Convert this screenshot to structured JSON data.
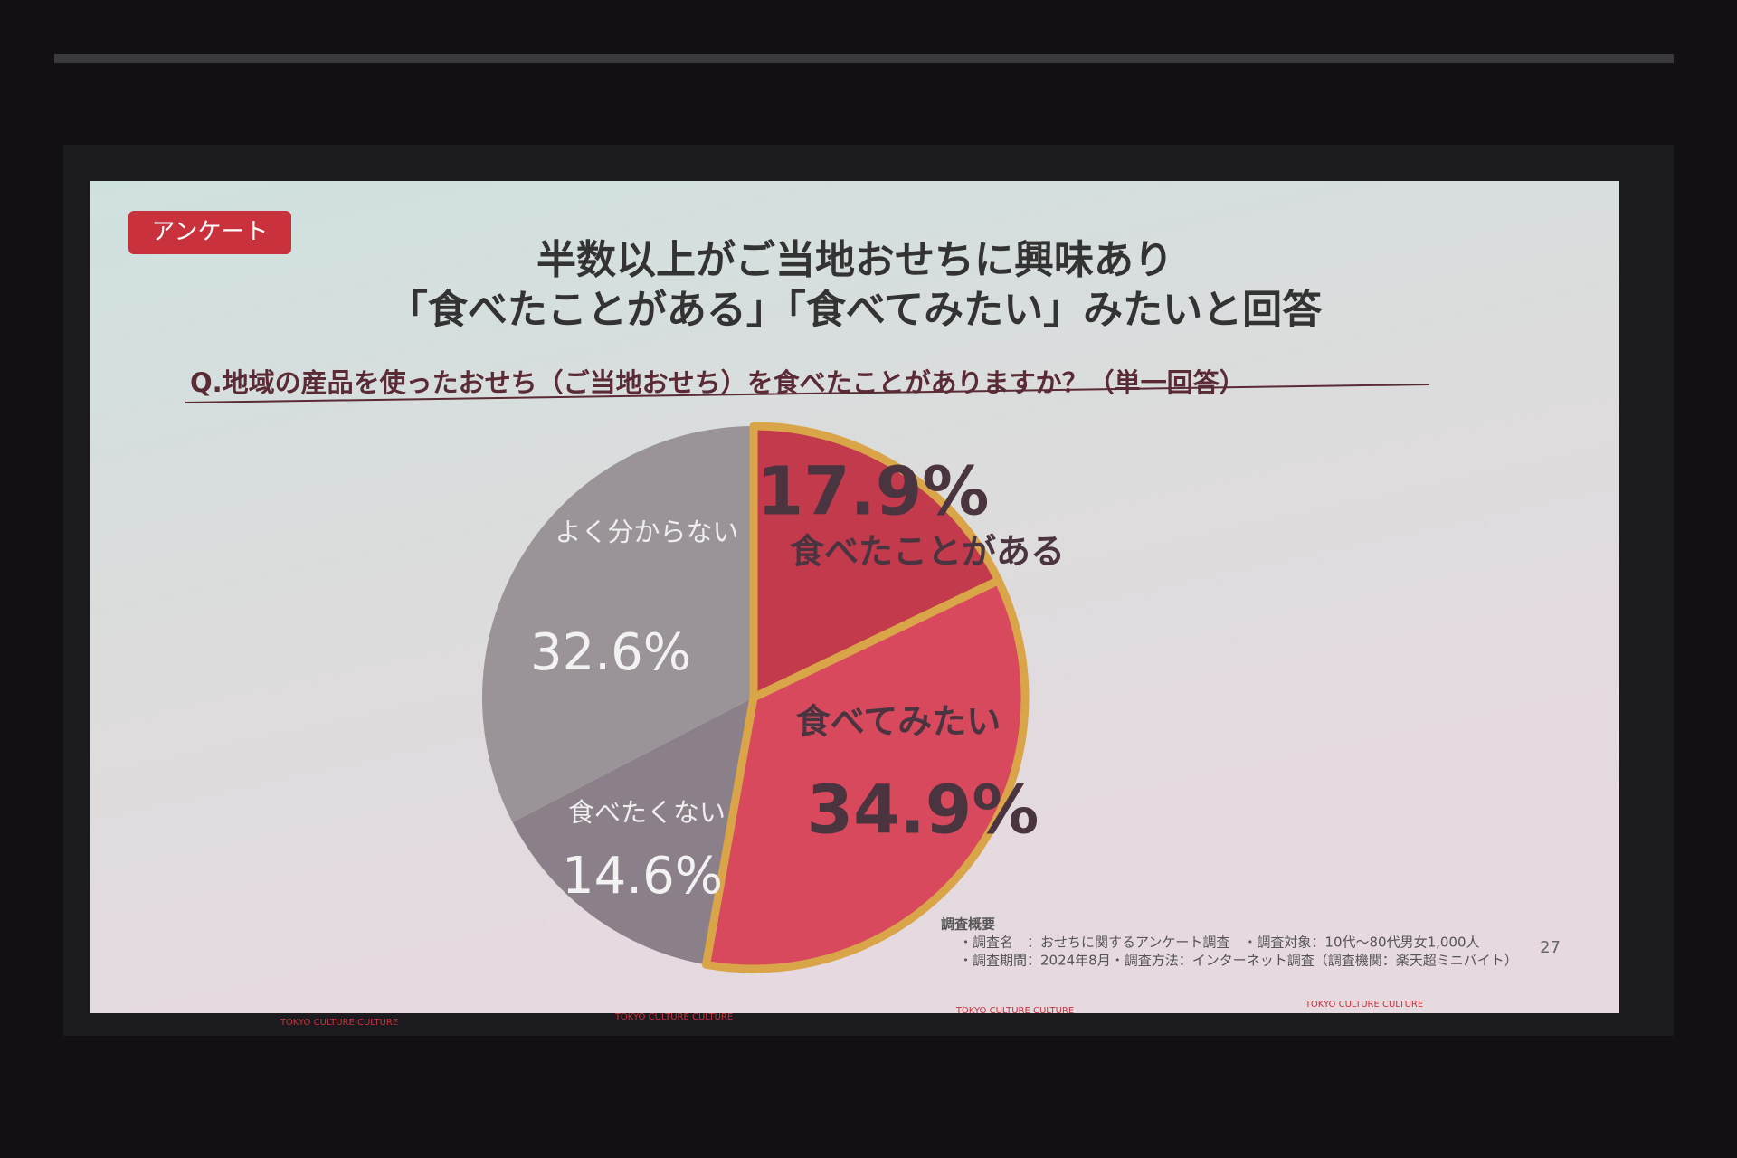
{
  "chart_data": {
    "type": "pie",
    "tag": "アンケート",
    "title": [
      "半数以上がご当地おせちに興味あり",
      "「食べたことがある」「食べてみたい」みたいと回答"
    ],
    "subtitle": "Q.地域の産品を使ったおせち（ご当地おせち）を食べたことがありますか？（単一回答）",
    "categories": [
      "食べたことがある",
      "食べてみたい",
      "食べたくない",
      "よく分からない"
    ],
    "values": [
      17.9,
      34.9,
      14.6,
      32.6
    ],
    "value_labels": [
      "17.9%",
      "34.9%",
      "14.6%",
      "32.6%"
    ],
    "colors": [
      "#c23a4c",
      "#d8495d",
      "#8b8089",
      "#9a9498"
    ],
    "edgecolors": [
      "#d9a548",
      "#d9a548",
      null,
      null
    ],
    "notes": [
      "調査概要",
      "・調査名　：おせちに関するアンケート調査　・調査対象：10代～80代男女1,000人",
      "・調査期間：2024年8月・調査方法：インターネット調査（調査機関：楽天超ミニバイト）"
    ],
    "page_number": "27",
    "footer": "TOKYO CULTURE CULTURE"
  }
}
